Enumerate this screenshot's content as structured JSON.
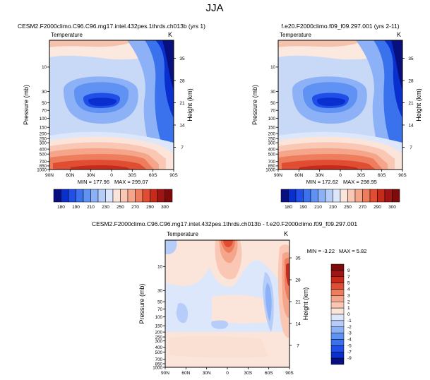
{
  "figure": {
    "title": "JJA",
    "field": "Temperature",
    "unit": "K",
    "x_labels": [
      "90N",
      "60N",
      "30N",
      "0",
      "30S",
      "60S",
      "90S"
    ],
    "y_labels": [
      "10",
      "30",
      "50",
      "70",
      "100",
      "150",
      "200",
      "250",
      "300",
      "400",
      "500",
      "700",
      "850",
      "1000"
    ],
    "right_labels": [
      "35",
      "28",
      "21",
      "14",
      "7"
    ],
    "y_axis_title": "Pressure (mb)",
    "right_axis_title": "Height (km)"
  },
  "chart_data": [
    {
      "type": "heatmap",
      "title": "CESM2.F2000climo.C96.C96.mg17.intel.432pes.1thrds.ch013b (yrs 1)",
      "stats": {
        "min_label": "MIN = 177.96",
        "max_label": "MAX = 299.07",
        "min": 177.96,
        "max": 299.07
      },
      "colorbar": {
        "ticks": [
          "180",
          "190",
          "210",
          "230",
          "250",
          "270",
          "290",
          "300"
        ],
        "colors": [
          "#08107f",
          "#0a2fcf",
          "#1f4fe8",
          "#3a72ee",
          "#5f92f3",
          "#8cb1f7",
          "#b7cdf9",
          "#dde7fb",
          "#fbe4d9",
          "#f9c7b3",
          "#f5a58a",
          "#ee7d5e",
          "#e04d33",
          "#c82a1a",
          "#a01414",
          "#7e0b0b"
        ],
        "orientation": "horizontal"
      },
      "ylabel": "Pressure (mb)",
      "xlabel": "",
      "ylim": [
        1000,
        3
      ]
    },
    {
      "type": "heatmap",
      "title": "f.e20.F2000climo.f09_f09.297.001 (yrs 2-11)",
      "stats": {
        "min_label": "MIN = 172.62",
        "max_label": "MAX = 298.95",
        "min": 172.62,
        "max": 298.95
      },
      "colorbar": {
        "ticks": [
          "180",
          "190",
          "210",
          "230",
          "250",
          "270",
          "290",
          "300"
        ],
        "colors": [
          "#08107f",
          "#0a2fcf",
          "#1f4fe8",
          "#3a72ee",
          "#5f92f3",
          "#8cb1f7",
          "#b7cdf9",
          "#dde7fb",
          "#fbe4d9",
          "#f9c7b3",
          "#f5a58a",
          "#ee7d5e",
          "#e04d33",
          "#c82a1a",
          "#a01414",
          "#7e0b0b"
        ],
        "orientation": "horizontal"
      },
      "ylabel": "Pressure (mb)",
      "xlabel": "",
      "ylim": [
        1000,
        3
      ]
    },
    {
      "type": "heatmap",
      "title": "CESM2.F2000climo.C96.C96.mg17.intel.432pes.1thrds.ch013b - f.e20.F2000climo.f09_f09.297.001",
      "stats": {
        "min_label": "MIN = -3.22",
        "max_label": "MAX =   5.82",
        "min": -3.22,
        "max": 5.82
      },
      "colorbar": {
        "ticks": [
          "9",
          "7",
          "5",
          "4",
          "3",
          "2",
          "1",
          "0",
          "-1",
          "-2",
          "-3",
          "-4",
          "-5",
          "-7",
          "-9"
        ],
        "colors": [
          "#7e0b0b",
          "#a01414",
          "#c82a1a",
          "#e04d33",
          "#ee7d5e",
          "#f5a58a",
          "#f9c7b3",
          "#fbe4d9",
          "#dde7fb",
          "#b7cdf9",
          "#8cb1f7",
          "#5f92f3",
          "#3a72ee",
          "#1f4fe8",
          "#0a2fcf",
          "#08107f"
        ],
        "orientation": "vertical"
      },
      "ylabel": "Pressure (mb)",
      "xlabel": "",
      "ylim": [
        1000,
        3
      ]
    }
  ]
}
